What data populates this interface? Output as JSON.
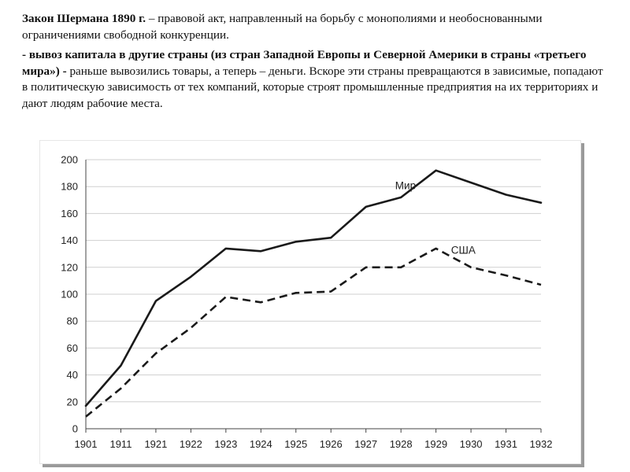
{
  "text": {
    "p1_bold": "Закон Шермана 1890 г.",
    "p1_rest": " – правовой акт, направленный на борьбу с монополиями и необоснованными ограничениями свободной конкуренции.",
    "p2_bold": "- вывоз капитала в другие страны (из стран Западной Европы и Северной Америки в страны «третьего мира») -",
    "p2_rest": " раньше вывозились товары, а теперь – деньги. Вскоре эти страны превращаются в зависимые, попадают в политическую зависимость от тех компаний, которые строят промышленные предприятия на их территориях и дают людям рабочие места."
  },
  "chart_data": {
    "type": "line",
    "categories": [
      "1901",
      "1911",
      "1921",
      "1922",
      "1923",
      "1924",
      "1925",
      "1926",
      "1927",
      "1928",
      "1929",
      "1930",
      "1931",
      "1932"
    ],
    "ylim": [
      0,
      200
    ],
    "yticks": [
      0,
      20,
      40,
      60,
      80,
      100,
      120,
      140,
      160,
      180,
      200
    ],
    "grid": true,
    "series": [
      {
        "name": "Мир",
        "style": "solid",
        "values": [
          17,
          47,
          95,
          113,
          134,
          132,
          139,
          142,
          165,
          172,
          192,
          183,
          174,
          168
        ]
      },
      {
        "name": "США",
        "style": "dashed",
        "values": [
          9,
          30,
          56,
          75,
          98,
          94,
          101,
          102,
          120,
          120,
          134,
          120,
          114,
          107
        ]
      }
    ],
    "colors": {
      "line": "#1a1a1a",
      "grid": "#cfcfcf",
      "axis": "#444444"
    }
  }
}
